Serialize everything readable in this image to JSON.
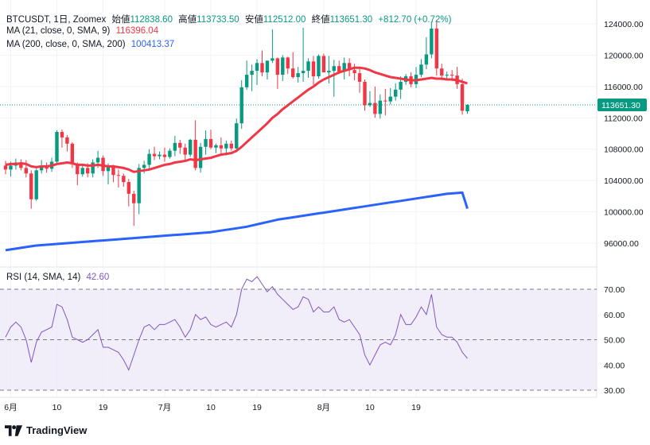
{
  "header": {
    "symbol": "BTCUSDT, 1日, Zoomex",
    "open_label": "始値",
    "open": "112838.60",
    "high_label": "高値",
    "high": "113733.50",
    "low_label": "安値",
    "low": "112512.00",
    "close_label": "終値",
    "close": "113651.30",
    "change": "+812.70 (+0.72%)"
  },
  "indicators": {
    "ma21_label": "MA (21, close, 0, SMA, 9)",
    "ma21_value": "116396.04",
    "ma200_label": "MA (200, close, 0, SMA, 200)",
    "ma200_value": "100413.37",
    "rsi_label": "RSI (14, SMA, 14)",
    "rsi_value": "42.60"
  },
  "price_tag": "113651.30",
  "branding": "TradingView",
  "colors": {
    "up": "#089981",
    "down": "#f23645",
    "ma21": "#f23645",
    "ma200": "#2962ff",
    "rsi": "#7e57c2",
    "rsi_band": "#ede7f6"
  },
  "chart_data": {
    "type": "candlestick",
    "price_axis": {
      "ticks": [
        96000,
        100000,
        104000,
        108000,
        112000,
        116000,
        120000,
        124000
      ],
      "labels": [
        "96000.00",
        "100000.00",
        "104000.00",
        "108000.00",
        "112000.00",
        "116000.00",
        "120000.00",
        "124000.00"
      ]
    },
    "rsi_axis": {
      "ticks": [
        30,
        40,
        50,
        60,
        70
      ],
      "labels": [
        "30.00",
        "40.00",
        "50.00",
        "60.00",
        "70.00"
      ],
      "band": [
        30,
        70
      ],
      "mid": 50
    },
    "x_axis": {
      "labels": [
        "6月",
        "10",
        "19",
        "7月",
        "10",
        "19",
        "8月",
        "10",
        "19"
      ],
      "label_days": [
        1,
        10,
        19,
        31,
        40,
        49,
        62,
        71,
        80
      ]
    },
    "candles": [
      [
        105900,
        106500,
        104800,
        105400
      ],
      [
        105400,
        106400,
        104500,
        105900
      ],
      [
        105900,
        106800,
        105400,
        106300
      ],
      [
        106300,
        106700,
        105300,
        105600
      ],
      [
        105600,
        106600,
        104400,
        104900
      ],
      [
        104900,
        105300,
        100400,
        101600
      ],
      [
        101600,
        105500,
        101400,
        105300
      ],
      [
        105300,
        106600,
        104900,
        105800
      ],
      [
        105800,
        106300,
        105000,
        105500
      ],
      [
        105500,
        106900,
        105100,
        106400
      ],
      [
        106400,
        110400,
        106000,
        110200
      ],
      [
        110200,
        110500,
        108200,
        109500
      ],
      [
        109500,
        109800,
        107700,
        108700
      ],
      [
        108700,
        108900,
        105600,
        106100
      ],
      [
        106100,
        106300,
        103400,
        104800
      ],
      [
        104800,
        106000,
        104500,
        105600
      ],
      [
        105600,
        106200,
        104400,
        104900
      ],
      [
        104900,
        106700,
        104400,
        106300
      ],
      [
        106300,
        107800,
        105600,
        106900
      ],
      [
        106900,
        107200,
        104600,
        105200
      ],
      [
        105200,
        106200,
        103500,
        105800
      ],
      [
        105800,
        106000,
        103800,
        104700
      ],
      [
        104700,
        105400,
        103100,
        104600
      ],
      [
        104600,
        104900,
        103200,
        103800
      ],
      [
        103800,
        104200,
        100700,
        102300
      ],
      [
        102300,
        102700,
        98200,
        101100
      ],
      [
        101100,
        106100,
        99700,
        105600
      ],
      [
        105600,
        106500,
        104900,
        106000
      ],
      [
        106000,
        108000,
        105500,
        107400
      ],
      [
        107400,
        108300,
        106600,
        107100
      ],
      [
        107100,
        107700,
        106700,
        107300
      ],
      [
        107300,
        108200,
        106400,
        107000
      ],
      [
        107000,
        108100,
        106800,
        107800
      ],
      [
        107800,
        109700,
        107100,
        108800
      ],
      [
        108800,
        109200,
        107400,
        108200
      ],
      [
        108200,
        108700,
        106600,
        107300
      ],
      [
        107300,
        109300,
        107000,
        109200
      ],
      [
        109200,
        111700,
        105300,
        105600
      ],
      [
        105600,
        108800,
        105000,
        108300
      ],
      [
        108300,
        110400,
        107300,
        109300
      ],
      [
        109300,
        110500,
        108000,
        108200
      ],
      [
        108200,
        108700,
        107500,
        108500
      ],
      [
        108500,
        109500,
        107300,
        108100
      ],
      [
        108100,
        109100,
        107200,
        108700
      ],
      [
        108700,
        109100,
        107800,
        108100
      ],
      [
        108100,
        111900,
        107600,
        111300
      ],
      [
        111300,
        116800,
        110600,
        115900
      ],
      [
        115900,
        119300,
        115600,
        117500
      ],
      [
        117500,
        118800,
        115400,
        118000
      ],
      [
        118000,
        119500,
        116200,
        119000
      ],
      [
        119000,
        120600,
        117300,
        117800
      ],
      [
        117800,
        119300,
        116900,
        119300
      ],
      [
        119300,
        123300,
        119000,
        119600
      ],
      [
        119600,
        119700,
        115700,
        117500
      ],
      [
        117500,
        120000,
        116700,
        119700
      ],
      [
        119700,
        119800,
        117600,
        118300
      ],
      [
        118300,
        120400,
        117000,
        117200
      ],
      [
        117200,
        118500,
        116500,
        117700
      ],
      [
        117700,
        123500,
        116600,
        118000
      ],
      [
        118000,
        119600,
        117100,
        119200
      ],
      [
        119200,
        119900,
        116200,
        117300
      ],
      [
        117300,
        120100,
        117000,
        119900
      ],
      [
        119900,
        120200,
        117900,
        117800
      ],
      [
        117800,
        119900,
        116400,
        118000
      ],
      [
        118000,
        119400,
        114700,
        118600
      ],
      [
        118600,
        119300,
        117600,
        117900
      ],
      [
        117900,
        119700,
        116900,
        119000
      ],
      [
        119000,
        119600,
        117300,
        118100
      ],
      [
        118100,
        118900,
        116800,
        117700
      ],
      [
        117700,
        118300,
        115200,
        116600
      ],
      [
        116600,
        116900,
        112900,
        113600
      ],
      [
        113600,
        115400,
        113400,
        113900
      ],
      [
        113900,
        116000,
        112000,
        112500
      ],
      [
        112500,
        115000,
        111900,
        114200
      ],
      [
        114200,
        115700,
        112300,
        114100
      ],
      [
        114100,
        115800,
        113700,
        114700
      ],
      [
        114700,
        116400,
        114200,
        115600
      ],
      [
        115600,
        117300,
        114400,
        116600
      ],
      [
        116600,
        117600,
        116200,
        117300
      ],
      [
        117300,
        117800,
        115900,
        116300
      ],
      [
        116300,
        118500,
        115800,
        117500
      ],
      [
        117500,
        119500,
        117200,
        118800
      ],
      [
        118800,
        122300,
        118200,
        120100
      ],
      [
        120100,
        124300,
        119600,
        123400
      ],
      [
        123400,
        124500,
        117400,
        118300
      ],
      [
        118300,
        118900,
        116800,
        117400
      ],
      [
        117400,
        117900,
        116900,
        117500
      ],
      [
        117500,
        118100,
        116700,
        117400
      ],
      [
        117400,
        118500,
        115700,
        116300
      ],
      [
        116300,
        117000,
        112400,
        112900
      ],
      [
        112838.6,
        113733.5,
        112512.0,
        113651.3
      ]
    ],
    "ma21": [
      106000,
      106100,
      106100,
      106200,
      106100,
      105800,
      105700,
      105800,
      105800,
      105900,
      106100,
      106200,
      106300,
      106200,
      106000,
      106000,
      105900,
      105900,
      106000,
      105900,
      105800,
      105800,
      105700,
      105600,
      105400,
      105100,
      105200,
      105300,
      105400,
      105600,
      105800,
      106000,
      106100,
      106300,
      106400,
      106500,
      106700,
      106600,
      106700,
      106800,
      106900,
      107100,
      107300,
      107400,
      107500,
      107800,
      108300,
      108900,
      109500,
      110100,
      110700,
      111300,
      112000,
      112500,
      113100,
      113600,
      114100,
      114600,
      115100,
      115600,
      116000,
      116500,
      116900,
      117200,
      117500,
      117800,
      118000,
      118200,
      118400,
      118400,
      118300,
      118100,
      117800,
      117600,
      117400,
      117200,
      117100,
      117000,
      116900,
      116800,
      116800,
      116900,
      117000,
      117100,
      117000,
      117000,
      116900,
      116900,
      116800,
      116600,
      116396.04
    ],
    "ma200": [
      95100,
      95200,
      95300,
      95400,
      95500,
      95600,
      95700,
      95750,
      95800,
      95850,
      95900,
      95950,
      96000,
      96050,
      96100,
      96150,
      96200,
      96250,
      96300,
      96350,
      96400,
      96450,
      96500,
      96550,
      96600,
      96650,
      96700,
      96750,
      96800,
      96850,
      96900,
      96950,
      97000,
      97050,
      97100,
      97150,
      97200,
      97250,
      97300,
      97350,
      97400,
      97500,
      97600,
      97700,
      97800,
      97900,
      98000,
      98100,
      98250,
      98400,
      98550,
      98700,
      98850,
      99000,
      99100,
      99200,
      99300,
      99400,
      99500,
      99600,
      99700,
      99800,
      99900,
      100000,
      100100,
      100200,
      100300,
      100400,
      100500,
      100600,
      100700,
      100800,
      100900,
      101000,
      101100,
      101200,
      101300,
      101400,
      101500,
      101600,
      101700,
      101800,
      101900,
      102000,
      102100,
      102200,
      102300,
      102350,
      102400,
      102450,
      100413.37
    ],
    "rsi": [
      51,
      55,
      57,
      55,
      50,
      41,
      49,
      53,
      54,
      55,
      64,
      63,
      58,
      51,
      50,
      49,
      50,
      52,
      54,
      47,
      47,
      46,
      45,
      42,
      38,
      44,
      50,
      55,
      56,
      54,
      56,
      56,
      57,
      58,
      55,
      51,
      54,
      60,
      58,
      59,
      56,
      55,
      56,
      57,
      55,
      60,
      70,
      74,
      73,
      75,
      72,
      69,
      71,
      68,
      66,
      64,
      62,
      63,
      67,
      66,
      61,
      63,
      61,
      61,
      63,
      58,
      57,
      58,
      55,
      52,
      44,
      40,
      44,
      48,
      49,
      48,
      52,
      60,
      56,
      56,
      59,
      63,
      60,
      68,
      55,
      52,
      51,
      51,
      49,
      45,
      42.6
    ]
  }
}
